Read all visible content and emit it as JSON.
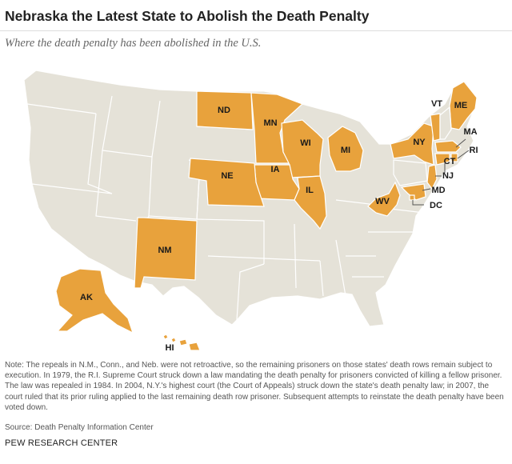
{
  "title": "Nebraska the Latest State to Abolish the Death Penalty",
  "subtitle": "Where the death penalty has been abolished in the U.S.",
  "colors": {
    "abolished": "#E8A23C",
    "other": "#E5E2D8",
    "border": "#ffffff"
  },
  "abolished_states": {
    "nd": "ND",
    "mn": "MN",
    "wi": "WI",
    "mi": "MI",
    "ia": "IA",
    "ne": "NE",
    "il": "IL",
    "nm": "NM",
    "ak": "AK",
    "hi": "HI",
    "wv": "WV",
    "ny": "NY",
    "vt": "VT",
    "me": "ME",
    "ma": "MA",
    "ri": "RI",
    "ct": "CT",
    "nj": "NJ",
    "md": "MD",
    "dc": "DC"
  },
  "note": "Note: The repeals in N.M., Conn., and Neb. were not retroactive, so the remaining prisoners on those states' death rows remain subject to execution. In 1979, the R.I. Supreme Court struck down a law mandating the death penalty for prisoners convicted of killing a fellow prisoner. The law was repealed in 1984. In 2004, N.Y.'s highest court (the Court of Appeals) struck down the state's death penalty law; in 2007, the court ruled that its prior ruling applied to the last remaining death row prisoner. Subsequent attempts to reinstate the death penalty have been voted down.",
  "source": "Source: Death Penalty Information Center",
  "brand": "PEW RESEARCH CENTER"
}
